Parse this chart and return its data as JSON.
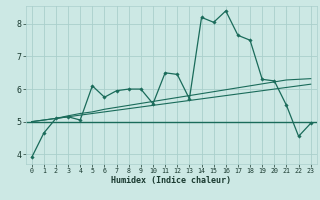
{
  "title": "",
  "xlabel": "Humidex (Indice chaleur)",
  "xlim": [
    -0.5,
    23.5
  ],
  "ylim": [
    3.7,
    8.55
  ],
  "xticks": [
    0,
    1,
    2,
    3,
    4,
    5,
    6,
    7,
    8,
    9,
    10,
    11,
    12,
    13,
    14,
    15,
    16,
    17,
    18,
    19,
    20,
    21,
    22,
    23
  ],
  "yticks": [
    4,
    5,
    6,
    7,
    8
  ],
  "bg_color": "#cce8e4",
  "grid_color": "#aacfcc",
  "line_color": "#1a6b5a",
  "main_y": [
    3.9,
    4.65,
    5.1,
    5.15,
    5.05,
    6.1,
    5.75,
    5.95,
    6.0,
    6.0,
    5.55,
    6.5,
    6.45,
    5.7,
    8.2,
    8.05,
    8.4,
    7.65,
    7.5,
    6.3,
    6.25,
    5.5,
    4.55,
    4.95
  ],
  "trend1_y": [
    5.0,
    5.05,
    5.1,
    5.15,
    5.2,
    5.25,
    5.3,
    5.35,
    5.4,
    5.45,
    5.5,
    5.55,
    5.6,
    5.65,
    5.7,
    5.75,
    5.8,
    5.85,
    5.9,
    5.95,
    6.0,
    6.05,
    6.1,
    6.15
  ],
  "trend2_y": [
    5.0,
    5.05,
    5.1,
    5.18,
    5.25,
    5.3,
    5.38,
    5.44,
    5.5,
    5.56,
    5.62,
    5.68,
    5.74,
    5.8,
    5.86,
    5.92,
    5.98,
    6.04,
    6.1,
    6.16,
    6.22,
    6.28,
    6.3,
    6.32
  ],
  "hline_y": 5.0
}
